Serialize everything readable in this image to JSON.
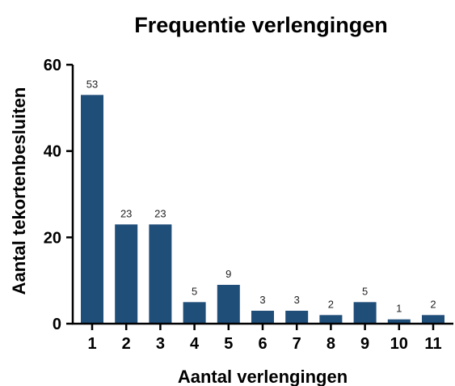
{
  "chart_data": {
    "type": "bar",
    "title": "Frequentie verlengingen",
    "xlabel": "Aantal verlengingen",
    "ylabel": "Aantal tekortenbesluiten",
    "categories": [
      "1",
      "2",
      "3",
      "4",
      "5",
      "6",
      "7",
      "8",
      "9",
      "10",
      "11"
    ],
    "values": [
      53,
      23,
      23,
      5,
      9,
      3,
      3,
      2,
      5,
      1,
      2
    ],
    "ylim": [
      0,
      60
    ],
    "yticks": [
      "0",
      "20",
      "40",
      "60"
    ],
    "data_labels": [
      "53",
      "23",
      "23",
      "5",
      "9",
      "3",
      "3",
      "2",
      "5",
      "1",
      "2"
    ],
    "bar_color": "#1f4e79",
    "grid": false,
    "legend": "none"
  }
}
